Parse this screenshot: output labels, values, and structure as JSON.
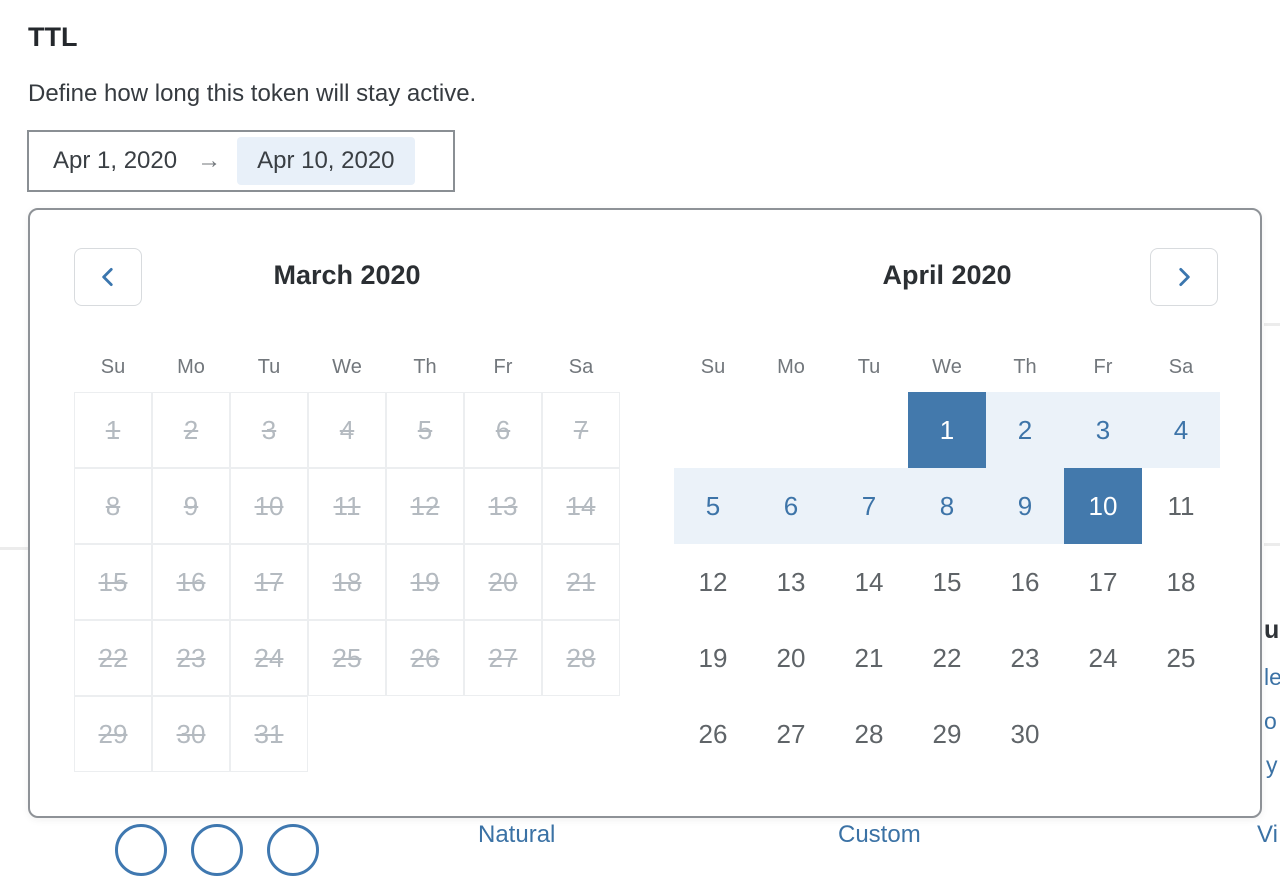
{
  "section": {
    "title": "TTL",
    "description": "Define how long this token will stay active."
  },
  "range_input": {
    "start_date": "Apr 1, 2020",
    "arrow": "→",
    "end_date": "Apr 10, 2020"
  },
  "calendar": {
    "weekdays": [
      "Su",
      "Mo",
      "Tu",
      "We",
      "Th",
      "Fr",
      "Sa"
    ],
    "months": [
      {
        "title": "March 2020",
        "disabled": true,
        "weeks": [
          [
            "1",
            "2",
            "3",
            "4",
            "5",
            "6",
            "7"
          ],
          [
            "8",
            "9",
            "10",
            "11",
            "12",
            "13",
            "14"
          ],
          [
            "15",
            "16",
            "17",
            "18",
            "19",
            "20",
            "21"
          ],
          [
            "22",
            "23",
            "24",
            "25",
            "26",
            "27",
            "28"
          ],
          [
            "29",
            "30",
            "31",
            "",
            "",
            "",
            ""
          ]
        ]
      },
      {
        "title": "April 2020",
        "range": {
          "start": 1,
          "end": 10
        },
        "weeks": [
          [
            "",
            "",
            "",
            "1",
            "2",
            "3",
            "4"
          ],
          [
            "5",
            "6",
            "7",
            "8",
            "9",
            "10",
            "11"
          ],
          [
            "12",
            "13",
            "14",
            "15",
            "16",
            "17",
            "18"
          ],
          [
            "19",
            "20",
            "21",
            "22",
            "23",
            "24",
            "25"
          ],
          [
            "26",
            "27",
            "28",
            "29",
            "30",
            "",
            ""
          ]
        ]
      }
    ],
    "prev_icon": "chevron-left",
    "next_icon": "chevron-right"
  },
  "colors": {
    "accent_blue": "#3b76ae",
    "selected_day_bg": "#4379ac",
    "range_bg": "#ebf2f9",
    "range_text": "#3d74a8",
    "disabled_text": "#b4bac0",
    "end_date_highlight_bg": "#e8f0f9"
  },
  "background_page": {
    "right_fragments": [
      "u",
      "le",
      "o",
      "y"
    ],
    "bottom_fragments": [
      "Natural",
      "Custom",
      "Vi"
    ]
  }
}
